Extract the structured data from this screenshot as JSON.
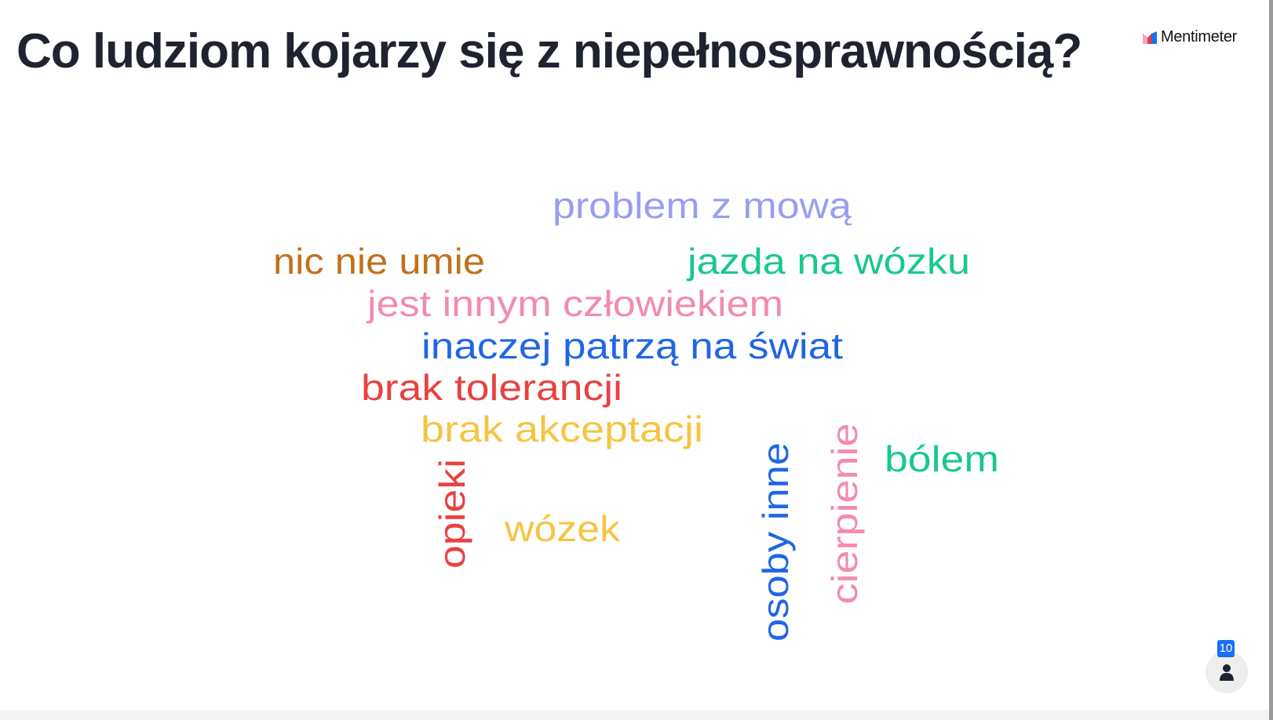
{
  "slide": {
    "title": "Co ludziom kojarzy się z niepełnosprawnością?"
  },
  "brand": {
    "name": "Mentimeter",
    "icon": "mentimeter-logo"
  },
  "word_cloud": {
    "words": [
      {
        "text": "problem z mową",
        "color": "#9a9ef0",
        "orientation": "horizontal"
      },
      {
        "text": "nic nie umie",
        "color": "#c2701d",
        "orientation": "horizontal"
      },
      {
        "text": "jazda na wózku",
        "color": "#19c98a",
        "orientation": "horizontal"
      },
      {
        "text": "jest innym człowiekiem",
        "color": "#f28bb0",
        "orientation": "horizontal"
      },
      {
        "text": "inaczej patrzą na świat",
        "color": "#1f66e5",
        "orientation": "horizontal"
      },
      {
        "text": "brak tolerancji",
        "color": "#e8413f",
        "orientation": "horizontal"
      },
      {
        "text": "brak akceptacji",
        "color": "#f5c441",
        "orientation": "horizontal"
      },
      {
        "text": "bólem",
        "color": "#19c98a",
        "orientation": "horizontal"
      },
      {
        "text": "wózek",
        "color": "#f5c441",
        "orientation": "horizontal"
      },
      {
        "text": "opieki",
        "color": "#e8413f",
        "orientation": "vertical"
      },
      {
        "text": "osoby inne",
        "color": "#1f66e5",
        "orientation": "vertical"
      },
      {
        "text": "cierpienie",
        "color": "#f28bb0",
        "orientation": "vertical"
      }
    ]
  },
  "participants": {
    "count": "10",
    "icon": "person-icon",
    "badge_color": "#1a6ef5"
  }
}
